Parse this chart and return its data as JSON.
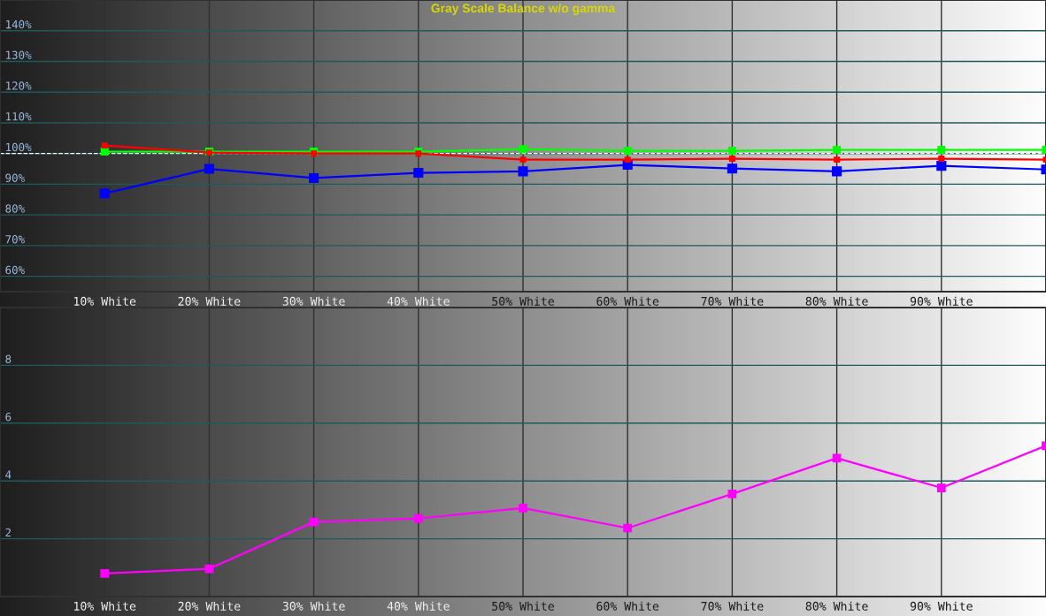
{
  "chart_data": [
    {
      "type": "line",
      "title": "Gray Scale Balance w/o gamma",
      "x": [
        10,
        20,
        30,
        40,
        50,
        60,
        70,
        80,
        90,
        100
      ],
      "xlim": [
        0,
        100
      ],
      "xticks": [
        {
          "value": 10,
          "label": "10% White"
        },
        {
          "value": 20,
          "label": "20% White"
        },
        {
          "value": 30,
          "label": "30% White"
        },
        {
          "value": 40,
          "label": "40% White"
        },
        {
          "value": 50,
          "label": "50% White"
        },
        {
          "value": 60,
          "label": "60% White"
        },
        {
          "value": 70,
          "label": "70% White"
        },
        {
          "value": 80,
          "label": "80% White"
        },
        {
          "value": 90,
          "label": "90% White"
        }
      ],
      "ylim": [
        55,
        150
      ],
      "yticks": [
        {
          "value": 60,
          "label": "60%"
        },
        {
          "value": 70,
          "label": "70%"
        },
        {
          "value": 80,
          "label": "80%"
        },
        {
          "value": 90,
          "label": "90%"
        },
        {
          "value": 100,
          "label": "100%"
        },
        {
          "value": 110,
          "label": "110%"
        },
        {
          "value": 120,
          "label": "120%"
        },
        {
          "value": 130,
          "label": "130%"
        },
        {
          "value": 140,
          "label": "140%"
        }
      ],
      "grid": true,
      "marker": "square",
      "line_style": "solid",
      "ref_lines": [
        {
          "axis": "y",
          "value": 100,
          "color": "#ffffff",
          "line_style": "dashed"
        }
      ],
      "series": [
        {
          "color": "#0000ff",
          "values": [
            87,
            95,
            92,
            93.7,
            94.2,
            96.3,
            95.1,
            94.2,
            96,
            94.8
          ]
        },
        {
          "color": "#00ff00",
          "values": [
            100.6,
            100.6,
            100.6,
            100.6,
            101.4,
            100.9,
            100.9,
            101.2,
            101.2,
            101.2
          ]
        },
        {
          "color": "#ff0000",
          "values": [
            102.6,
            100.3,
            100,
            100,
            98,
            98,
            98.3,
            98,
            98.3,
            98
          ]
        }
      ]
    },
    {
      "type": "line",
      "x": [
        10,
        20,
        30,
        40,
        50,
        60,
        70,
        80,
        90,
        100
      ],
      "xlim": [
        0,
        100
      ],
      "xticks": [
        {
          "value": 10,
          "label": "10% White"
        },
        {
          "value": 20,
          "label": "20% White"
        },
        {
          "value": 30,
          "label": "30% White"
        },
        {
          "value": 40,
          "label": "40% White"
        },
        {
          "value": 50,
          "label": "50% White"
        },
        {
          "value": 60,
          "label": "60% White"
        },
        {
          "value": 70,
          "label": "70% White"
        },
        {
          "value": 80,
          "label": "80% White"
        },
        {
          "value": 90,
          "label": "90% White"
        }
      ],
      "ylim": [
        0,
        10
      ],
      "yticks": [
        2,
        4,
        6,
        8
      ],
      "grid": true,
      "marker": "square",
      "line_style": "solid",
      "series": [
        {
          "color": "#ff00ff",
          "values": [
            0.8,
            0.96,
            2.58,
            2.7,
            3.06,
            2.37,
            3.55,
            4.79,
            3.76,
            5.22
          ]
        }
      ]
    }
  ]
}
